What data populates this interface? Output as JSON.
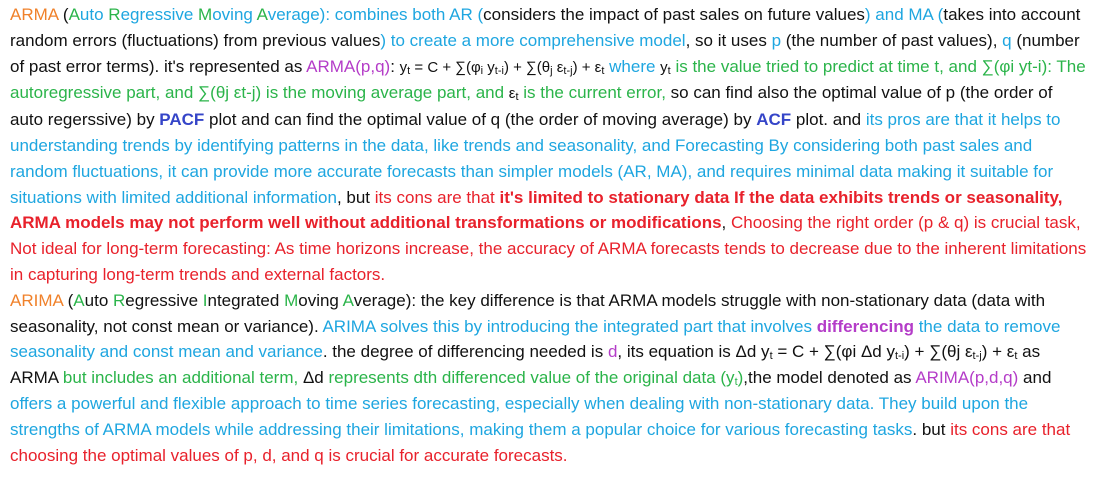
{
  "colors": {
    "black": "#111111",
    "orange": "#f0812a",
    "green": "#2bb44a",
    "blue": "#1ea6e0",
    "red": "#e8212b",
    "purple": "#b43cc8",
    "darkblue": "#3545c8"
  },
  "paragraphs": [
    {
      "id": "arma",
      "segments": [
        {
          "t": "ARMA",
          "c": "orange"
        },
        {
          "t": " (",
          "c": "black"
        },
        {
          "t": "A",
          "c": "green"
        },
        {
          "t": "uto ",
          "c": "blue"
        },
        {
          "t": "R",
          "c": "green"
        },
        {
          "t": "egressive ",
          "c": "blue"
        },
        {
          "t": "M",
          "c": "green"
        },
        {
          "t": "oving ",
          "c": "blue"
        },
        {
          "t": "A",
          "c": "green"
        },
        {
          "t": "verage): ",
          "c": "blue"
        },
        {
          "t": "combines both AR (",
          "c": "blue"
        },
        {
          "t": "considers the impact of past sales on future values",
          "c": "black"
        },
        {
          "t": ") and MA (",
          "c": "blue"
        },
        {
          "t": "takes into account random errors (fluctuations) from previous values",
          "c": "black"
        },
        {
          "t": ") to create a more comprehensive model",
          "c": "blue"
        },
        {
          "t": ", so it uses ",
          "c": "black"
        },
        {
          "t": "p",
          "c": "blue"
        },
        {
          "t": " (the number of past values), ",
          "c": "black"
        },
        {
          "t": "q",
          "c": "blue"
        },
        {
          "t": " (number of past error terms). it's represented as ",
          "c": "black"
        },
        {
          "t": "ARMA(p,q)",
          "c": "purple"
        },
        {
          "t": ": ",
          "c": "black"
        },
        {
          "t": "y",
          "c": "black",
          "sm": true
        },
        {
          "t": "t",
          "c": "black",
          "sub": true
        },
        {
          "t": " = C + ∑(φ",
          "c": "black",
          "sm": true
        },
        {
          "t": "i",
          "c": "black",
          "sub": true
        },
        {
          "t": " y",
          "c": "black",
          "sm": true
        },
        {
          "t": "t-i",
          "c": "black",
          "sub": true
        },
        {
          "t": ") + ∑(θ",
          "c": "black",
          "sm": true
        },
        {
          "t": "j",
          "c": "black",
          "sub": true
        },
        {
          "t": " ε",
          "c": "black",
          "sm": true
        },
        {
          "t": "t-j",
          "c": "black",
          "sub": true
        },
        {
          "t": ") + ε",
          "c": "black",
          "sm": true
        },
        {
          "t": "t",
          "c": "black",
          "sub": true
        },
        {
          "t": " where ",
          "c": "blue"
        },
        {
          "t": "y",
          "c": "black",
          "sm": true
        },
        {
          "t": "t",
          "c": "black",
          "sub": true
        },
        {
          "t": " is the value tried to predict at time t, and ∑(φi yt-i): The autoregressive part, and ∑(θj εt-j) is the moving average part, and ",
          "c": "green"
        },
        {
          "t": "ε",
          "c": "black",
          "sm": true
        },
        {
          "t": "t",
          "c": "black",
          "sub": true
        },
        {
          "t": " is the current error,",
          "c": "green"
        },
        {
          "t": " so can find also the optimal value of p (the order of auto regerssive) by ",
          "c": "black"
        },
        {
          "t": "PACF",
          "c": "darkblue",
          "b": true
        },
        {
          "t": " plot and can find the optimal value of q (the order of moving average) by ",
          "c": "black"
        },
        {
          "t": "ACF",
          "c": "darkblue",
          "b": true
        },
        {
          "t": " plot. and ",
          "c": "black"
        },
        {
          "t": "its pros are that it helps to understanding trends by identifying patterns in the data, like trends and seasonality, and Forecasting By considering both past sales and random fluctuations, it can provide more accurate forecasts than simpler models (AR, MA), and requires minimal data making it suitable for situations with limited additional information",
          "c": "blue"
        },
        {
          "t": ", but  ",
          "c": "black"
        },
        {
          "t": "its cons are that ",
          "c": "red"
        },
        {
          "t": "it's limited to stationary data If the data exhibits trends or seasonality, ARMA models may not perform well without additional transformations or modifications",
          "c": "red",
          "b": true
        },
        {
          "t": ", ",
          "c": "black"
        },
        {
          "t": "Choosing the right order (p & q) is crucial task, Not ideal for long-term forecasting: As time horizons increase, the accuracy of ARMA forecasts tends to decrease due to the inherent limitations in capturing long-term trends and external factors.",
          "c": "red"
        }
      ]
    },
    {
      "id": "arima",
      "segments": [
        {
          "t": "ARIMA",
          "c": "orange"
        },
        {
          "t": " (",
          "c": "black"
        },
        {
          "t": "A",
          "c": "green"
        },
        {
          "t": "uto ",
          "c": "black"
        },
        {
          "t": "R",
          "c": "green"
        },
        {
          "t": "egressive ",
          "c": "black"
        },
        {
          "t": "I",
          "c": "green"
        },
        {
          "t": "ntegrated ",
          "c": "black"
        },
        {
          "t": "M",
          "c": "green"
        },
        {
          "t": "oving ",
          "c": "black"
        },
        {
          "t": "A",
          "c": "green"
        },
        {
          "t": "verage): the key difference is that ARMA models struggle with non-stationary data (data with seasonality, not const mean or variance). ",
          "c": "black"
        },
        {
          "t": "ARIMA solves this by introducing the integrated part that involves ",
          "c": "blue"
        },
        {
          "t": "differencing",
          "c": "purple",
          "b": true
        },
        {
          "t": " the data to remove seasonality and const mean and variance",
          "c": "blue"
        },
        {
          "t": ". the degree of differencing needed is ",
          "c": "black"
        },
        {
          "t": "d",
          "c": "purple"
        },
        {
          "t": ", its equation is Δd y",
          "c": "black"
        },
        {
          "t": "t",
          "c": "black",
          "sub": true
        },
        {
          "t": " = C + ∑(φi Δd y",
          "c": "black"
        },
        {
          "t": "t-i",
          "c": "black",
          "sub": true
        },
        {
          "t": ") + ∑(θj ε",
          "c": "black"
        },
        {
          "t": "t-j",
          "c": "black",
          "sub": true
        },
        {
          "t": ") + ε",
          "c": "black"
        },
        {
          "t": "t",
          "c": "black",
          "sub": true
        },
        {
          "t": " as ARMA ",
          "c": "black"
        },
        {
          "t": "but includes an additional term, ",
          "c": "green"
        },
        {
          "t": "Δd ",
          "c": "black"
        },
        {
          "t": "represents dth differenced value of the original data (y",
          "c": "green"
        },
        {
          "t": "t",
          "c": "green",
          "sub": true
        },
        {
          "t": ")",
          "c": "green"
        },
        {
          "t": ",the model denoted as  ",
          "c": "black"
        },
        {
          "t": "ARIMA(p,d,q)",
          "c": "purple"
        },
        {
          "t": "  and ",
          "c": "black"
        },
        {
          "t": "offers a powerful and flexible approach to time series forecasting, especially when dealing with non-stationary data. They build upon the strengths of ARMA models while addressing their limitations, making them a popular choice for various forecasting tasks",
          "c": "blue"
        },
        {
          "t": ". but ",
          "c": "black"
        },
        {
          "t": "its cons are that choosing the optimal values of p, d, and q  is crucial for accurate forecasts.",
          "c": "red"
        }
      ]
    }
  ]
}
